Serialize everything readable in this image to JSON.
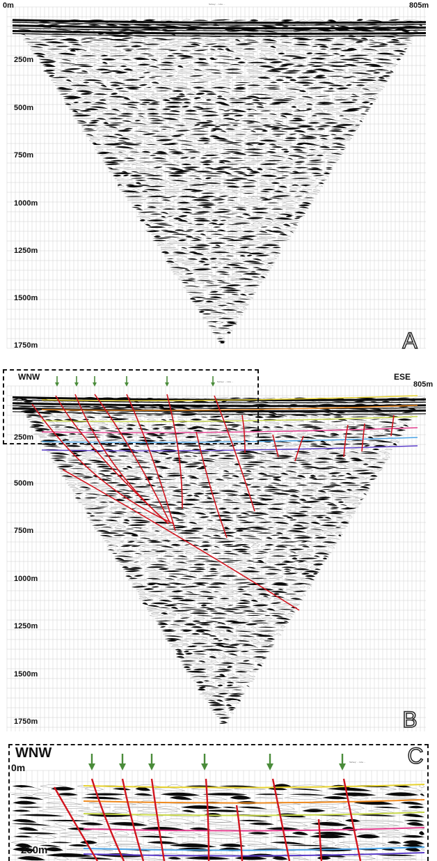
{
  "panels": {
    "A": {
      "letter": "A",
      "right_distance": "805m",
      "depth_ticks": [
        "0m",
        "250m",
        "500m",
        "750m",
        "1000m",
        "1250m",
        "1500m",
        "1750m"
      ],
      "header_text": "Survey: ... Line ..."
    },
    "B": {
      "letter": "B",
      "left_direction": "WNW",
      "right_direction": "ESE",
      "right_distance": "805m",
      "depth_ticks": [
        "250m",
        "500m",
        "750m",
        "1000m",
        "1250m",
        "1500m",
        "1750m"
      ],
      "header_text": "Survey: ... Line ...",
      "fault_color": "#d2141e",
      "arrow_color": "#4a8c3a",
      "horizon_colors": [
        "#e6d22e",
        "#f08a1e",
        "#c8d84a",
        "#e23c8c",
        "#4aa4e6",
        "#5a3cc8"
      ]
    },
    "C": {
      "letter": "C",
      "left_direction": "WNW",
      "depth_ticks": [
        "0m",
        "250m"
      ],
      "header_text": "Survey: ... Line ..."
    }
  }
}
